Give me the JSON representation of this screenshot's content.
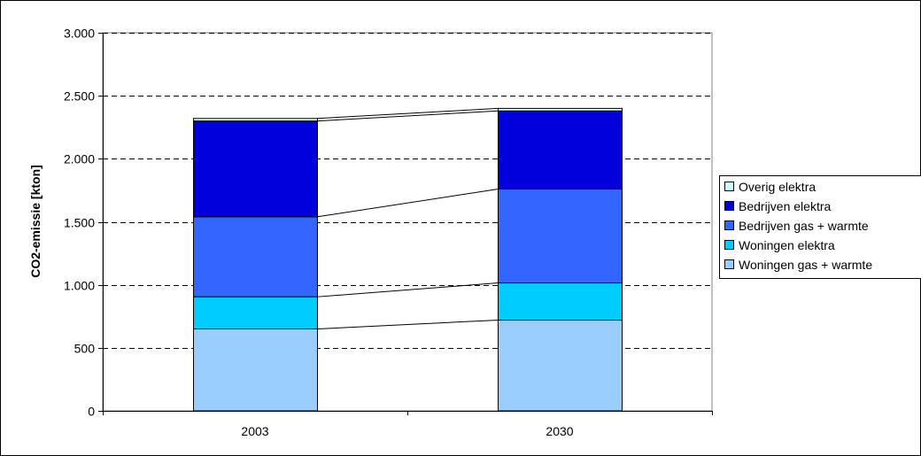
{
  "chart_data": {
    "type": "bar",
    "stacked": true,
    "categories": [
      "2003",
      "2030"
    ],
    "ylabel": "CO2-emissie [kton]",
    "xlabel": "",
    "ylim": [
      0,
      3000
    ],
    "yticks": [
      0,
      500,
      1000,
      1500,
      2000,
      2500,
      3000
    ],
    "ytick_labels": [
      "0",
      "500",
      "1.000",
      "1.500",
      "2.000",
      "2.500",
      "3.000"
    ],
    "grid": "horizontal dashed",
    "legend_position": "right",
    "series": [
      {
        "name": "Woningen gas + warmte",
        "values": [
          650,
          720
        ],
        "color": "#99ccff"
      },
      {
        "name": "Woningen elektra",
        "values": [
          255,
          295
        ],
        "color": "#00ccff"
      },
      {
        "name": "Bedrijven gas + warmte",
        "values": [
          635,
          745
        ],
        "color": "#3366ff"
      },
      {
        "name": "Bedrijven elektra",
        "values": [
          760,
          620
        ],
        "color": "#0000dd"
      },
      {
        "name": "Overig elektra",
        "values": [
          20,
          20
        ],
        "color": "#ccffff"
      }
    ]
  }
}
